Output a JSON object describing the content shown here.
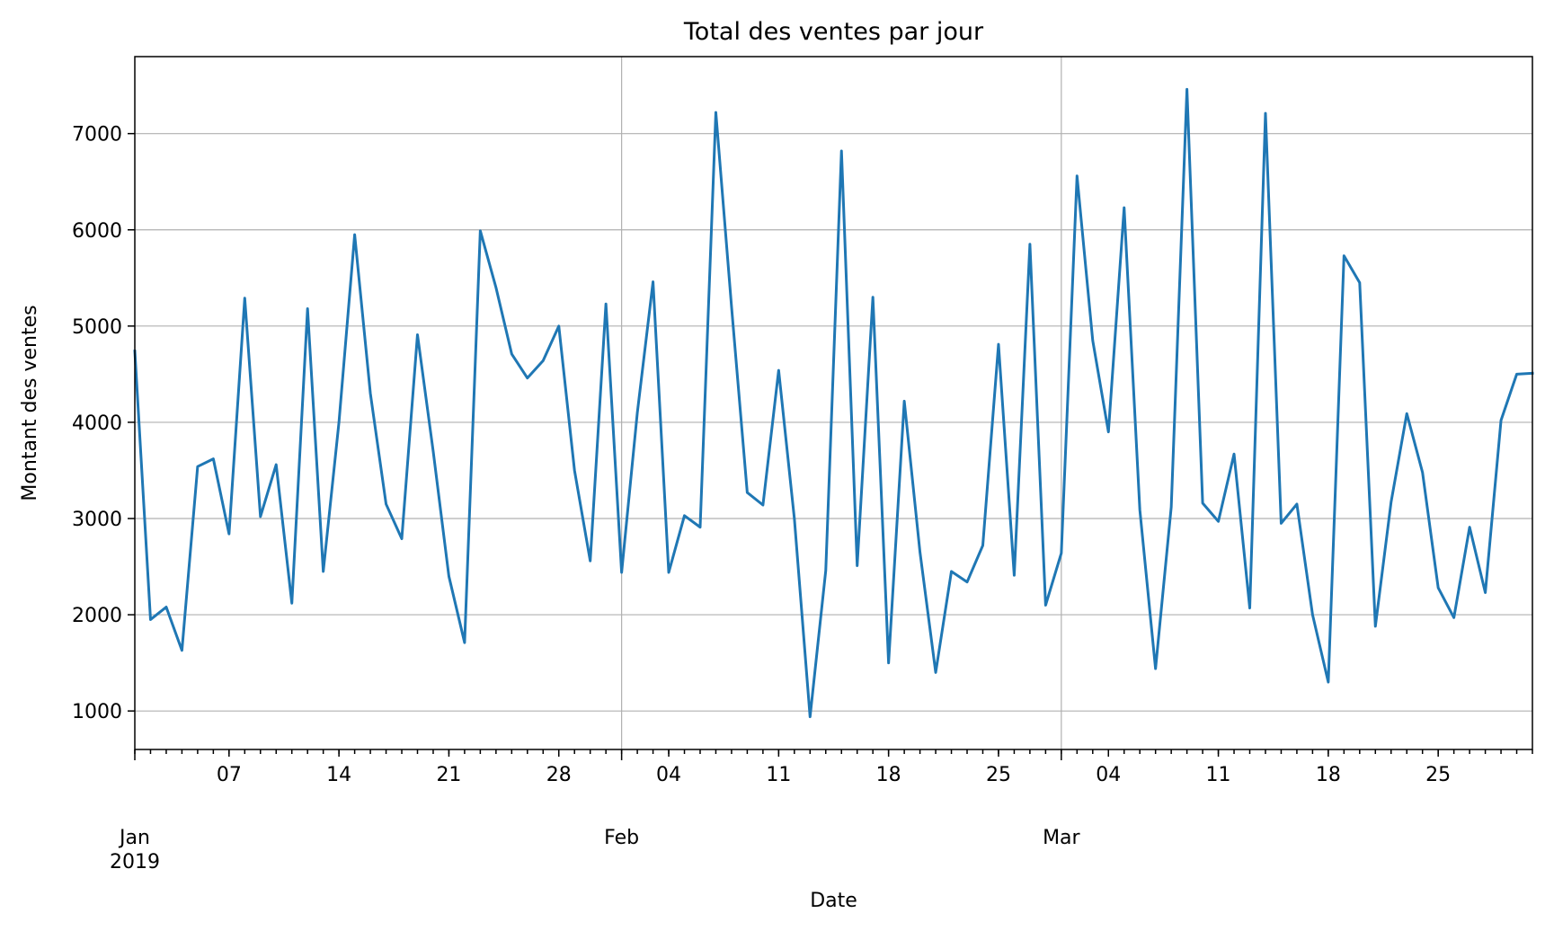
{
  "chart_data": {
    "type": "line",
    "title": "Total des ventes par jour",
    "xlabel": "Date",
    "ylabel": "Montant des ventes",
    "x_start": "2019-01-01",
    "x_end": "2019-03-31",
    "ylim": [
      600,
      7800
    ],
    "grid": true,
    "y_ticks": [
      1000,
      2000,
      3000,
      4000,
      5000,
      6000,
      7000
    ],
    "y_tick_labels": [
      "1000",
      "2000",
      "3000",
      "4000",
      "5000",
      "6000",
      "7000"
    ],
    "x_minor_ticks": [
      {
        "date": "2019-01-07",
        "label": "07"
      },
      {
        "date": "2019-01-14",
        "label": "14"
      },
      {
        "date": "2019-01-21",
        "label": "21"
      },
      {
        "date": "2019-01-28",
        "label": "28"
      },
      {
        "date": "2019-02-04",
        "label": "04"
      },
      {
        "date": "2019-02-11",
        "label": "11"
      },
      {
        "date": "2019-02-18",
        "label": "18"
      },
      {
        "date": "2019-02-25",
        "label": "25"
      },
      {
        "date": "2019-03-04",
        "label": "04"
      },
      {
        "date": "2019-03-11",
        "label": "11"
      },
      {
        "date": "2019-03-18",
        "label": "18"
      },
      {
        "date": "2019-03-25",
        "label": "25"
      }
    ],
    "x_major_ticks": [
      {
        "date": "2019-01-01",
        "label": "Jan",
        "sublabel": "2019"
      },
      {
        "date": "2019-02-01",
        "label": "Feb",
        "sublabel": ""
      },
      {
        "date": "2019-03-01",
        "label": "Mar",
        "sublabel": ""
      }
    ],
    "series": [
      {
        "color": "#1f77b4",
        "x": [
          "2019-01-01",
          "2019-01-02",
          "2019-01-03",
          "2019-01-04",
          "2019-01-05",
          "2019-01-06",
          "2019-01-07",
          "2019-01-08",
          "2019-01-09",
          "2019-01-10",
          "2019-01-11",
          "2019-01-12",
          "2019-01-13",
          "2019-01-14",
          "2019-01-15",
          "2019-01-16",
          "2019-01-17",
          "2019-01-18",
          "2019-01-19",
          "2019-01-20",
          "2019-01-21",
          "2019-01-22",
          "2019-01-23",
          "2019-01-24",
          "2019-01-25",
          "2019-01-26",
          "2019-01-27",
          "2019-01-28",
          "2019-01-29",
          "2019-01-30",
          "2019-01-31",
          "2019-02-01",
          "2019-02-02",
          "2019-02-03",
          "2019-02-04",
          "2019-02-05",
          "2019-02-06",
          "2019-02-07",
          "2019-02-08",
          "2019-02-09",
          "2019-02-10",
          "2019-02-11",
          "2019-02-12",
          "2019-02-13",
          "2019-02-14",
          "2019-02-15",
          "2019-02-16",
          "2019-02-17",
          "2019-02-18",
          "2019-02-19",
          "2019-02-20",
          "2019-02-21",
          "2019-02-22",
          "2019-02-23",
          "2019-02-24",
          "2019-02-25",
          "2019-02-26",
          "2019-02-27",
          "2019-02-28",
          "2019-03-01",
          "2019-03-02",
          "2019-03-03",
          "2019-03-04",
          "2019-03-05",
          "2019-03-06",
          "2019-03-07",
          "2019-03-08",
          "2019-03-09",
          "2019-03-10",
          "2019-03-11",
          "2019-03-12",
          "2019-03-13",
          "2019-03-14",
          "2019-03-15",
          "2019-03-16",
          "2019-03-17",
          "2019-03-18",
          "2019-03-19",
          "2019-03-20",
          "2019-03-21",
          "2019-03-22",
          "2019-03-23",
          "2019-03-24",
          "2019-03-25",
          "2019-03-26",
          "2019-03-27",
          "2019-03-28",
          "2019-03-29",
          "2019-03-30",
          "2019-03-31"
        ],
        "values": [
          4740,
          1950,
          2080,
          1630,
          3540,
          3620,
          2840,
          5290,
          3020,
          3560,
          2120,
          5180,
          2450,
          4000,
          5950,
          4300,
          3150,
          2790,
          4910,
          3700,
          2400,
          1710,
          5990,
          5400,
          4710,
          4460,
          4640,
          5000,
          3500,
          2560,
          5230,
          2440,
          4100,
          5460,
          2440,
          3030,
          2910,
          7220,
          5200,
          3270,
          3140,
          4540,
          3000,
          940,
          2460,
          6820,
          2510,
          5300,
          1500,
          4220,
          2650,
          1400,
          2450,
          2340,
          2720,
          4810,
          2410,
          5850,
          2100,
          2640,
          6560,
          4850,
          3900,
          6230,
          3090,
          1440,
          3120,
          7460,
          3160,
          2970,
          3670,
          2070,
          7210,
          2950,
          3150,
          2000,
          1300,
          5730,
          5450,
          1880,
          3170,
          4090,
          3480,
          2280,
          1970,
          2910,
          2230,
          4020,
          4500,
          4510
        ]
      }
    ]
  }
}
